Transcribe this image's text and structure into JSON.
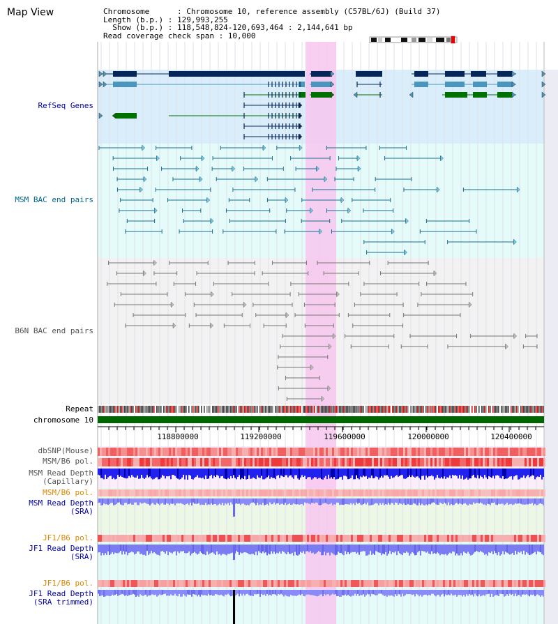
{
  "app_title": "Map View",
  "info": {
    "chromosome_line": "Chromosome      : Chromosome 10, reference assembly (C57BL/6J) (Build 37)",
    "length_line": "Length (b.p.) : 129,993,255",
    "show_line": "  Show (b.p.) : 118,548,824-120,693,464 : 2,144,641 bp",
    "coverage_line": "Read coverage check span : 10,000"
  },
  "tracks": {
    "refseq": "RefSeq Genes",
    "msm_bac": "MSM BAC end pairs",
    "b6n_bac": "B6N BAC end pairs",
    "repeat": "Repeat",
    "chromosome": "chromosome 10",
    "dbsnp": "dbSNP(Mouse)",
    "msm_b6_pol_1": "MSM/B6 pol.",
    "msm_depth_cap": "MSM Read Depth\n(Capillary)",
    "msm_b6_pol_2": "MSM/B6 pol.",
    "msm_depth_sra": "MSM Read Depth\n(SRA)",
    "jf1_b6_pol_1": "JF1/B6 pol.",
    "jf1_depth_sra": "JF1 Read Depth\n(SRA)",
    "jf1_b6_pol_2": "JF1/B6 pol.",
    "jf1_depth_trim": "JF1 Read Depth\n(SRA trimmed)"
  },
  "axis": {
    "ticks": [
      "118800000",
      "119200000",
      "119600000",
      "120000000",
      "120400000"
    ]
  },
  "colors": {
    "label_blue": "#0000aa",
    "label_teal": "#006688",
    "label_gray": "#555555",
    "label_orange": "#dd8800",
    "highlight": "#f7c7ef",
    "gene_dark": "#06265a",
    "gene_mid": "#4a96bd",
    "gene_green": "#007000",
    "refseq_bg": "#d9eefa",
    "msm_bg": "#e4fbfa",
    "b6n_bg": "#f2f2f2",
    "chrom_green": "#006600"
  }
}
